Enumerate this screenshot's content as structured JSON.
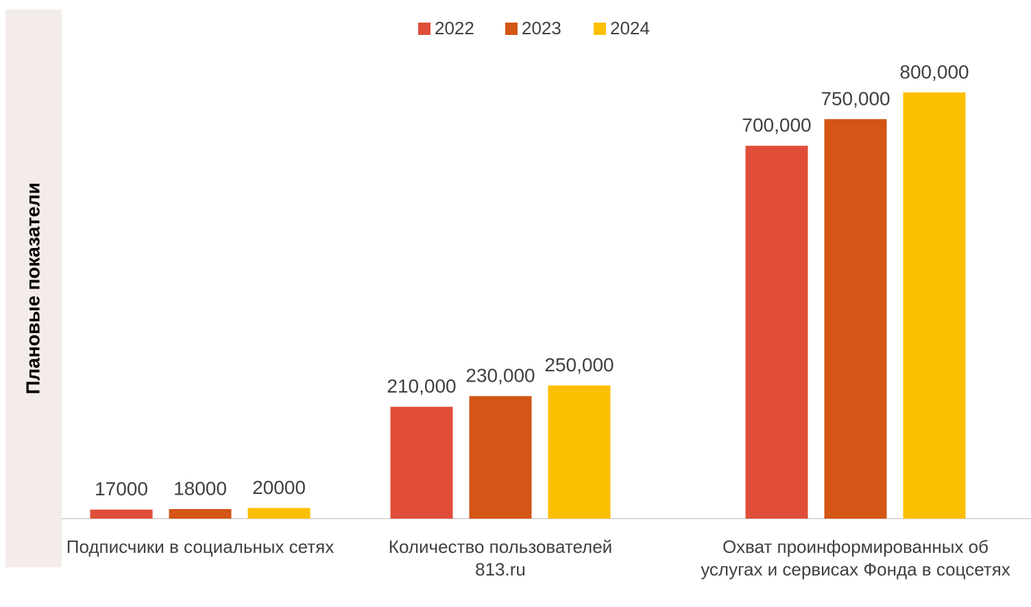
{
  "chart_data": {
    "type": "bar",
    "y_label": "Плановые показатели",
    "categories": [
      "Подписчики в социальных сетях",
      "Количество пользователей 813.ru",
      "Охват проинформированных об услугах и сервисах Фонда в соцсетях"
    ],
    "series": [
      {
        "name": "2022",
        "color": "#e04e39",
        "values": [
          17000,
          210000,
          700000
        ],
        "value_labels": [
          "17000",
          "210,000",
          "700,000"
        ]
      },
      {
        "name": "2023",
        "color": "#d35616",
        "values": [
          18000,
          230000,
          750000
        ],
        "value_labels": [
          "18000",
          "230,000",
          "750,000"
        ]
      },
      {
        "name": "2024",
        "color": "#fcbf00",
        "values": [
          20000,
          250000,
          800000
        ],
        "value_labels": [
          "20000",
          "250,000",
          "800,000"
        ]
      }
    ]
  }
}
